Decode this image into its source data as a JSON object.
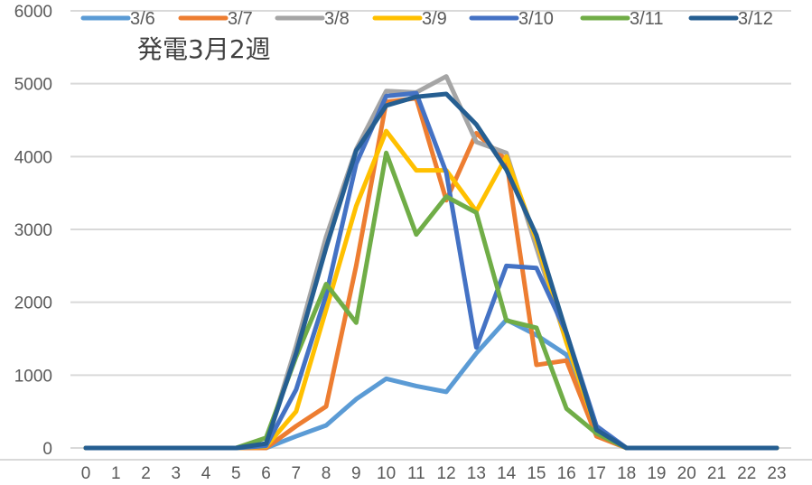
{
  "chart_data": {
    "type": "line",
    "title": "発電3月2週",
    "xlabel": "",
    "ylabel": "",
    "ylim": [
      0,
      6000
    ],
    "yticks": [
      0,
      1000,
      2000,
      3000,
      4000,
      5000,
      6000
    ],
    "grid": true,
    "legend_position": "top",
    "x": [
      0,
      1,
      2,
      3,
      4,
      5,
      6,
      7,
      8,
      9,
      10,
      11,
      12,
      13,
      14,
      15,
      16,
      17,
      18,
      19,
      20,
      21,
      22,
      23
    ],
    "series": [
      {
        "name": "3/6",
        "color": "#5B9BD5",
        "values": [
          0,
          0,
          0,
          0,
          0,
          0,
          0,
          160,
          310,
          670,
          950,
          850,
          770,
          1300,
          1760,
          1550,
          1280,
          220,
          0,
          0,
          0,
          0,
          0,
          0
        ]
      },
      {
        "name": "3/7",
        "color": "#ED7D31",
        "values": [
          0,
          0,
          0,
          0,
          0,
          0,
          0,
          300,
          570,
          2500,
          4750,
          4800,
          3400,
          4320,
          3950,
          1140,
          1200,
          160,
          0,
          0,
          0,
          0,
          0,
          0
        ]
      },
      {
        "name": "3/8",
        "color": "#A5A5A5",
        "values": [
          0,
          0,
          0,
          0,
          0,
          0,
          50,
          1400,
          2900,
          4100,
          4900,
          4880,
          5100,
          4200,
          4050,
          2750,
          1450,
          280,
          0,
          0,
          0,
          0,
          0,
          0
        ]
      },
      {
        "name": "3/9",
        "color": "#FFC000",
        "values": [
          0,
          0,
          0,
          0,
          0,
          0,
          20,
          500,
          1900,
          3320,
          4350,
          3810,
          3810,
          3250,
          4000,
          2850,
          1450,
          250,
          0,
          0,
          0,
          0,
          0,
          0
        ]
      },
      {
        "name": "3/10",
        "color": "#4472C4",
        "values": [
          0,
          0,
          0,
          0,
          0,
          0,
          30,
          800,
          2100,
          3900,
          4830,
          4870,
          3780,
          1380,
          2500,
          2470,
          1580,
          300,
          0,
          0,
          0,
          0,
          0,
          0
        ]
      },
      {
        "name": "3/11",
        "color": "#70AD47",
        "values": [
          0,
          0,
          0,
          0,
          0,
          0,
          140,
          1250,
          2250,
          1720,
          4050,
          2930,
          3450,
          3230,
          1750,
          1650,
          540,
          200,
          0,
          0,
          0,
          0,
          0,
          0
        ]
      },
      {
        "name": "3/12",
        "color": "#255E91",
        "values": [
          0,
          0,
          0,
          0,
          0,
          0,
          60,
          1300,
          2750,
          4080,
          4700,
          4820,
          4860,
          4440,
          3820,
          2920,
          1580,
          250,
          0,
          0,
          0,
          0,
          0,
          0
        ]
      }
    ]
  },
  "colors": {
    "grid": "#D9D9D9",
    "axis_text": "#595959",
    "title_text": "#404040"
  }
}
